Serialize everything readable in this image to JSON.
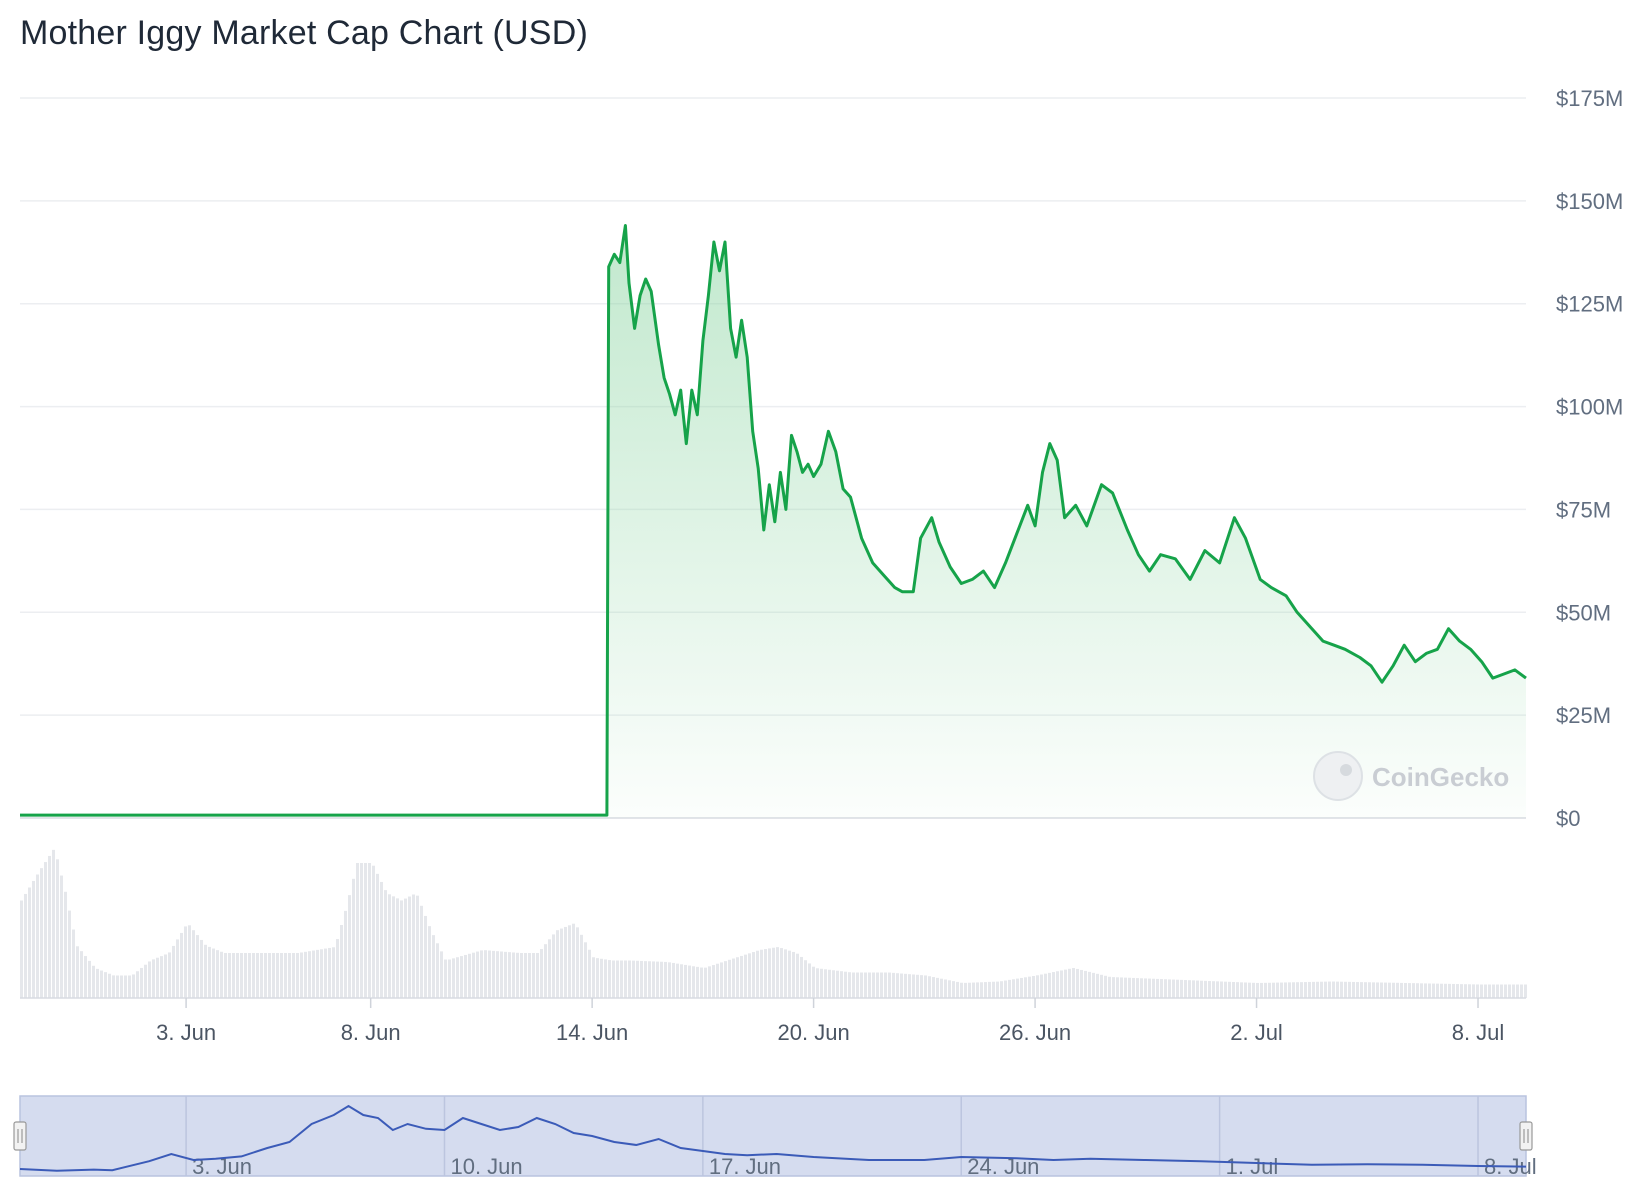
{
  "chart_data": {
    "type": "area",
    "title": "Mother Iggy Market Cap Chart (USD)",
    "currency": "USD",
    "y_ticks": [
      "$0",
      "$25M",
      "$50M",
      "$75M",
      "$100M",
      "$125M",
      "$150M",
      "$175M"
    ],
    "ylim": [
      0,
      175
    ],
    "y_unit": "M",
    "x_ticks": [
      "3. Jun",
      "8. Jun",
      "14. Jun",
      "20. Jun",
      "26. Jun",
      "2. Jul",
      "8. Jul"
    ],
    "x_tick_days": [
      3,
      8,
      14,
      20,
      26,
      32,
      38
    ],
    "xlim_days": [
      -1.5,
      39.3
    ],
    "market_cap_series": {
      "x_days": [
        -1.5,
        14.4,
        14.45,
        14.6,
        14.75,
        14.9,
        15.0,
        15.15,
        15.3,
        15.45,
        15.6,
        15.8,
        15.95,
        16.1,
        16.25,
        16.4,
        16.55,
        16.7,
        16.85,
        17.0,
        17.15,
        17.3,
        17.45,
        17.6,
        17.75,
        17.9,
        18.05,
        18.2,
        18.35,
        18.5,
        18.65,
        18.8,
        18.95,
        19.1,
        19.25,
        19.4,
        19.55,
        19.7,
        19.85,
        20.0,
        20.2,
        20.4,
        20.6,
        20.8,
        21.0,
        21.3,
        21.6,
        21.9,
        22.2,
        22.4,
        22.7,
        22.9,
        23.2,
        23.4,
        23.7,
        24.0,
        24.3,
        24.6,
        24.9,
        25.2,
        25.5,
        25.8,
        26.0,
        26.2,
        26.4,
        26.6,
        26.8,
        27.1,
        27.4,
        27.8,
        28.1,
        28.5,
        28.8,
        29.1,
        29.4,
        29.8,
        30.2,
        30.6,
        31.0,
        31.4,
        31.7,
        32.1,
        32.4,
        32.8,
        33.1,
        33.5,
        33.8,
        34.1,
        34.4,
        34.8,
        35.1,
        35.4,
        35.7,
        36.0,
        36.3,
        36.6,
        36.9,
        37.2,
        37.5,
        37.8,
        38.1,
        38.4,
        38.7,
        39.0,
        39.3
      ],
      "values": [
        0.7,
        0.7,
        134,
        137,
        135,
        144,
        130,
        119,
        127,
        131,
        128,
        115,
        107,
        103,
        98,
        104,
        91,
        104,
        98,
        116,
        127,
        140,
        133,
        140,
        119,
        112,
        121,
        112,
        94,
        85,
        70,
        81,
        72,
        84,
        75,
        93,
        89,
        84,
        86,
        83,
        86,
        94,
        89,
        80,
        78,
        68,
        62,
        59,
        56,
        55,
        55,
        68,
        73,
        67,
        61,
        57,
        58,
        60,
        56,
        62,
        69,
        76,
        71,
        84,
        91,
        87,
        73,
        76,
        71,
        81,
        79,
        70,
        64,
        60,
        64,
        63,
        58,
        65,
        62,
        73,
        68,
        58,
        56,
        54,
        50,
        46,
        43,
        42,
        41,
        39,
        37,
        33,
        37,
        42,
        38,
        40,
        41,
        46,
        43,
        41,
        38,
        34,
        35,
        36,
        34
      ],
      "color": "#16a34a",
      "fill_color": "#8fd6a5"
    },
    "volume_series": {
      "x_days": [
        -1.5,
        -1.0,
        -0.6,
        -0.3,
        0.0,
        0.5,
        1.0,
        1.5,
        2.0,
        2.5,
        3.0,
        3.5,
        4.0,
        5.0,
        6.0,
        6.5,
        7.0,
        7.3,
        7.6,
        8.0,
        8.4,
        8.8,
        9.2,
        9.6,
        10.0,
        11.0,
        12.0,
        12.5,
        13.0,
        13.5,
        14.0,
        14.5,
        15.0,
        16.0,
        17.0,
        18.0,
        18.5,
        19.0,
        19.5,
        20.0,
        21.0,
        22.0,
        23.0,
        24.0,
        25.0,
        26.0,
        27.0,
        28.0,
        30.0,
        32.0,
        34.0,
        36.0,
        38.0,
        39.3
      ],
      "values": [
        6.5,
        8.5,
        10.0,
        7.0,
        3.5,
        2.0,
        1.5,
        1.5,
        2.5,
        3.0,
        5.0,
        3.5,
        3.0,
        3.0,
        3.0,
        3.2,
        3.4,
        6.0,
        9.0,
        9.0,
        7.0,
        6.5,
        7.0,
        4.5,
        2.5,
        3.2,
        3.0,
        3.0,
        4.5,
        5.0,
        2.7,
        2.5,
        2.5,
        2.4,
        2.0,
        2.8,
        3.2,
        3.4,
        3.0,
        2.0,
        1.7,
        1.7,
        1.5,
        1.0,
        1.1,
        1.5,
        2.0,
        1.4,
        1.2,
        1.0,
        1.1,
        1.0,
        0.9,
        0.9
      ],
      "color": "#cfd3da"
    },
    "navigator": {
      "x_ticks": [
        "3. Jun",
        "10. Jun",
        "17. Jun",
        "24. Jun",
        "1. Jul",
        "8. Jul"
      ],
      "x_tick_days": [
        3,
        10,
        17,
        24,
        31,
        38
      ],
      "xlim_days": [
        -1.5,
        39.3
      ],
      "series_days": [
        -1.5,
        -0.5,
        0.5,
        1.0,
        2.0,
        2.6,
        3.2,
        3.8,
        4.5,
        5.2,
        5.8,
        6.4,
        7.0,
        7.4,
        7.8,
        8.2,
        8.6,
        9.0,
        9.5,
        10.0,
        10.5,
        11.0,
        11.5,
        12.0,
        12.5,
        13.0,
        13.5,
        14.0,
        14.6,
        15.2,
        15.8,
        16.4,
        17.0,
        17.6,
        18.2,
        19.0,
        20.0,
        21.5,
        23.0,
        24.0,
        25.5,
        26.5,
        27.5,
        29.0,
        30.5,
        32.0,
        33.5,
        35.0,
        36.5,
        38.0,
        39.3
      ],
      "series_values": [
        0.5,
        0.2,
        0.4,
        0.3,
        1.8,
        3.0,
        2.0,
        2.2,
        2.6,
        4.0,
        5.0,
        8.0,
        9.5,
        11.0,
        9.5,
        9.0,
        7.0,
        8.0,
        7.2,
        7.0,
        9.0,
        8.0,
        7.0,
        7.5,
        9.0,
        8.0,
        6.5,
        6.0,
        5.0,
        4.5,
        5.5,
        4.0,
        3.5,
        3.0,
        2.8,
        3.0,
        2.5,
        2.0,
        2.0,
        2.5,
        2.3,
        2.0,
        2.2,
        2.0,
        1.8,
        1.5,
        1.2,
        1.3,
        1.2,
        1.0,
        0.9
      ],
      "series_color": "#3b5bb8",
      "band_color": "#d5dcef"
    },
    "watermark": "CoinGecko"
  }
}
